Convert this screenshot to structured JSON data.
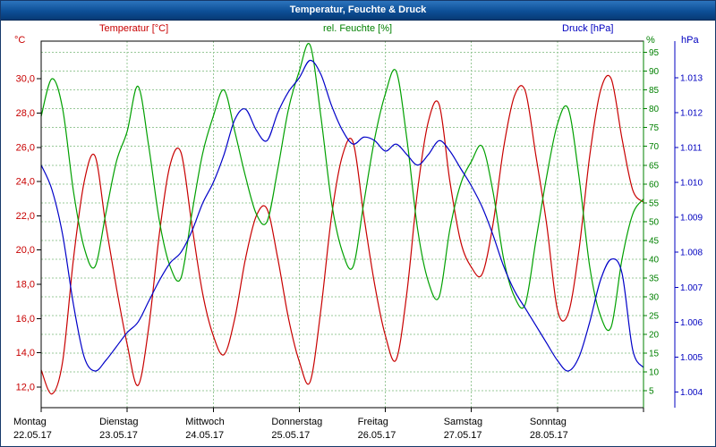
{
  "window": {
    "title": "Temperatur, Feuchte & Druck",
    "titlebar_color": "#0d4f97"
  },
  "chart_data": {
    "type": "line",
    "title": "Temperatur, Feuchte & Druck",
    "legend_position": "top",
    "grid": {
      "on": true,
      "color": "#98c898",
      "style": "dashed"
    },
    "x": {
      "unit": "hours",
      "start": 0,
      "end": 168,
      "step": 3,
      "days": [
        {
          "name": "Montag",
          "date": "22.05.17"
        },
        {
          "name": "Dienstag",
          "date": "23.05.17"
        },
        {
          "name": "Mittwoch",
          "date": "24.05.17"
        },
        {
          "name": "Donnerstag",
          "date": "25.05.17"
        },
        {
          "name": "Freitag",
          "date": "26.05.17"
        },
        {
          "name": "Samstag",
          "date": "27.05.17"
        },
        {
          "name": "Sonntag",
          "date": "28.05.17"
        }
      ]
    },
    "axes": {
      "temperature": {
        "label": "Temperatur [°C]",
        "unit": "°C",
        "color": "#c80000",
        "side": "left",
        "range": [
          10.8,
          32.2
        ],
        "tick_values": [
          12,
          14,
          16,
          18,
          20,
          22,
          24,
          26,
          28,
          30
        ],
        "ticks": [
          "12,0",
          "14,0",
          "16,0",
          "18,0",
          "20,0",
          "22,0",
          "24,0",
          "26,0",
          "28,0",
          "30,0"
        ]
      },
      "humidity": {
        "label": "rel. Feuchte [%]",
        "unit": "%",
        "color": "#008000",
        "side": "right-inner",
        "range": [
          0.5,
          98
        ],
        "tick_values": [
          5,
          10,
          15,
          20,
          25,
          30,
          35,
          40,
          45,
          50,
          55,
          60,
          65,
          70,
          75,
          80,
          85,
          90,
          95
        ],
        "ticks": [
          "5",
          "10",
          "15",
          "20",
          "25",
          "30",
          "35",
          "40",
          "45",
          "50",
          "55",
          "60",
          "65",
          "70",
          "75",
          "80",
          "85",
          "90",
          "95"
        ]
      },
      "pressure": {
        "label": "Druck [hPa]",
        "unit": "hPa",
        "color": "#0000c0",
        "side": "right-outer",
        "range": [
          1.00355,
          1.01405
        ],
        "tick_values": [
          1.004,
          1.005,
          1.006,
          1.007,
          1.008,
          1.009,
          1.01,
          1.011,
          1.012,
          1.013
        ],
        "ticks": [
          "1.004",
          "1.005",
          "1.006",
          "1.007",
          "1.008",
          "1.009",
          "1.010",
          "1.011",
          "1.012",
          "1.013"
        ]
      }
    },
    "series": [
      {
        "name": "Temperatur [°C]",
        "axis": "temperature",
        "color": "#c80000",
        "values": [
          13.0,
          11.6,
          13.5,
          19.5,
          24.0,
          25.5,
          21.5,
          17.8,
          14.5,
          12.1,
          15.5,
          21.0,
          25.0,
          25.7,
          21.5,
          17.5,
          15.0,
          13.9,
          16.0,
          19.5,
          22.0,
          22.4,
          19.5,
          16.0,
          13.5,
          12.3,
          16.5,
          22.0,
          25.5,
          26.3,
          22.0,
          18.0,
          15.0,
          13.6,
          17.5,
          23.5,
          27.5,
          28.5,
          24.0,
          20.5,
          19.0,
          18.6,
          21.5,
          26.0,
          29.0,
          29.3,
          25.5,
          21.5,
          16.5,
          16.3,
          20.0,
          25.5,
          29.3,
          30.0,
          26.5,
          23.5,
          22.8
        ]
      },
      {
        "name": "rel. Feuchte [%]",
        "axis": "humidity",
        "color": "#00a000",
        "values": [
          78,
          88,
          80,
          58,
          43,
          38,
          52,
          66,
          74,
          86,
          70,
          50,
          38,
          35,
          52,
          68,
          78,
          85,
          74,
          62,
          52,
          50,
          64,
          80,
          90,
          97,
          78,
          55,
          42,
          38,
          55,
          72,
          84,
          90,
          72,
          48,
          34,
          30,
          48,
          60,
          66,
          70,
          58,
          40,
          30,
          28,
          45,
          62,
          76,
          80,
          62,
          38,
          25,
          22,
          40,
          52,
          56
        ]
      },
      {
        "name": "Druck [hPa]",
        "axis": "pressure",
        "color": "#0000c8",
        "values": [
          1.0105,
          1.0098,
          1.0085,
          1.0065,
          1.005,
          1.0046,
          1.0049,
          1.0053,
          1.0057,
          1.006,
          1.0066,
          1.0072,
          1.0077,
          1.008,
          1.0086,
          1.0094,
          1.01,
          1.0108,
          1.0118,
          1.0121,
          1.0115,
          1.0112,
          1.012,
          1.0126,
          1.013,
          1.0135,
          1.0131,
          1.0122,
          1.0115,
          1.0111,
          1.0113,
          1.0112,
          1.0109,
          1.0111,
          1.0108,
          1.0105,
          1.0108,
          1.0112,
          1.0109,
          1.0104,
          1.0099,
          1.0093,
          1.0085,
          1.0076,
          1.0069,
          1.0064,
          1.0059,
          1.0054,
          1.0049,
          1.0046,
          1.005,
          1.006,
          1.0072,
          1.0078,
          1.0074,
          1.0052,
          1.0047
        ]
      }
    ]
  }
}
